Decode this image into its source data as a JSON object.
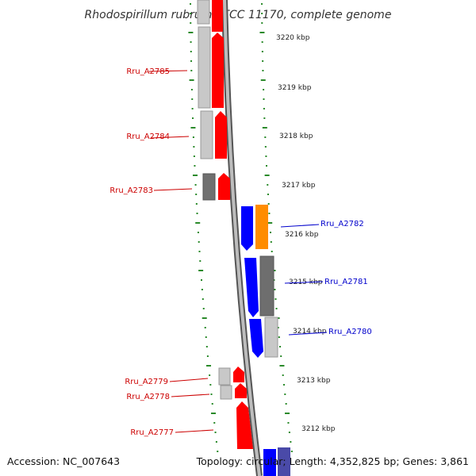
{
  "title": "Rhodospirillum rubrum ATCC 11170, complete genome",
  "footer": {
    "accession": "Accession: NC_007643",
    "stats": "Topology: circular; Length: 4,352,825 bp; Genes: 3,861"
  },
  "colors": {
    "forward": "#ff0000",
    "reverse": "#0000ff",
    "orange": "#ff8c00",
    "gray_light": "#c8c8c8",
    "gray_mid": "#a8a8a8",
    "gray_dark": "#6e6e6e",
    "ticks": "#2a8a2a",
    "forward_label": "#cc0000",
    "reverse_label": "#0000cc"
  },
  "scale_labels": [
    {
      "text": "3220 kbp"
    },
    {
      "text": "3219 kbp"
    },
    {
      "text": "3218 kbp"
    },
    {
      "text": "3217 kbp"
    },
    {
      "text": "3216 kbp"
    },
    {
      "text": "3215 kbp"
    },
    {
      "text": "3214 kbp"
    },
    {
      "text": "3213 kbp"
    },
    {
      "text": "3212 kbp"
    }
  ],
  "gene_labels": [
    {
      "text": "Rru_A2785",
      "strand": "forward"
    },
    {
      "text": "Rru_A2784",
      "strand": "forward"
    },
    {
      "text": "Rru_A2783",
      "strand": "forward"
    },
    {
      "text": "Rru_A2782",
      "strand": "reverse"
    },
    {
      "text": "Rru_A2781",
      "strand": "reverse"
    },
    {
      "text": "Rru_A2780",
      "strand": "reverse"
    },
    {
      "text": "Rru_A2779",
      "strand": "forward"
    },
    {
      "text": "Rru_A2778",
      "strand": "forward"
    },
    {
      "text": "Rru_A2777",
      "strand": "forward"
    }
  ]
}
